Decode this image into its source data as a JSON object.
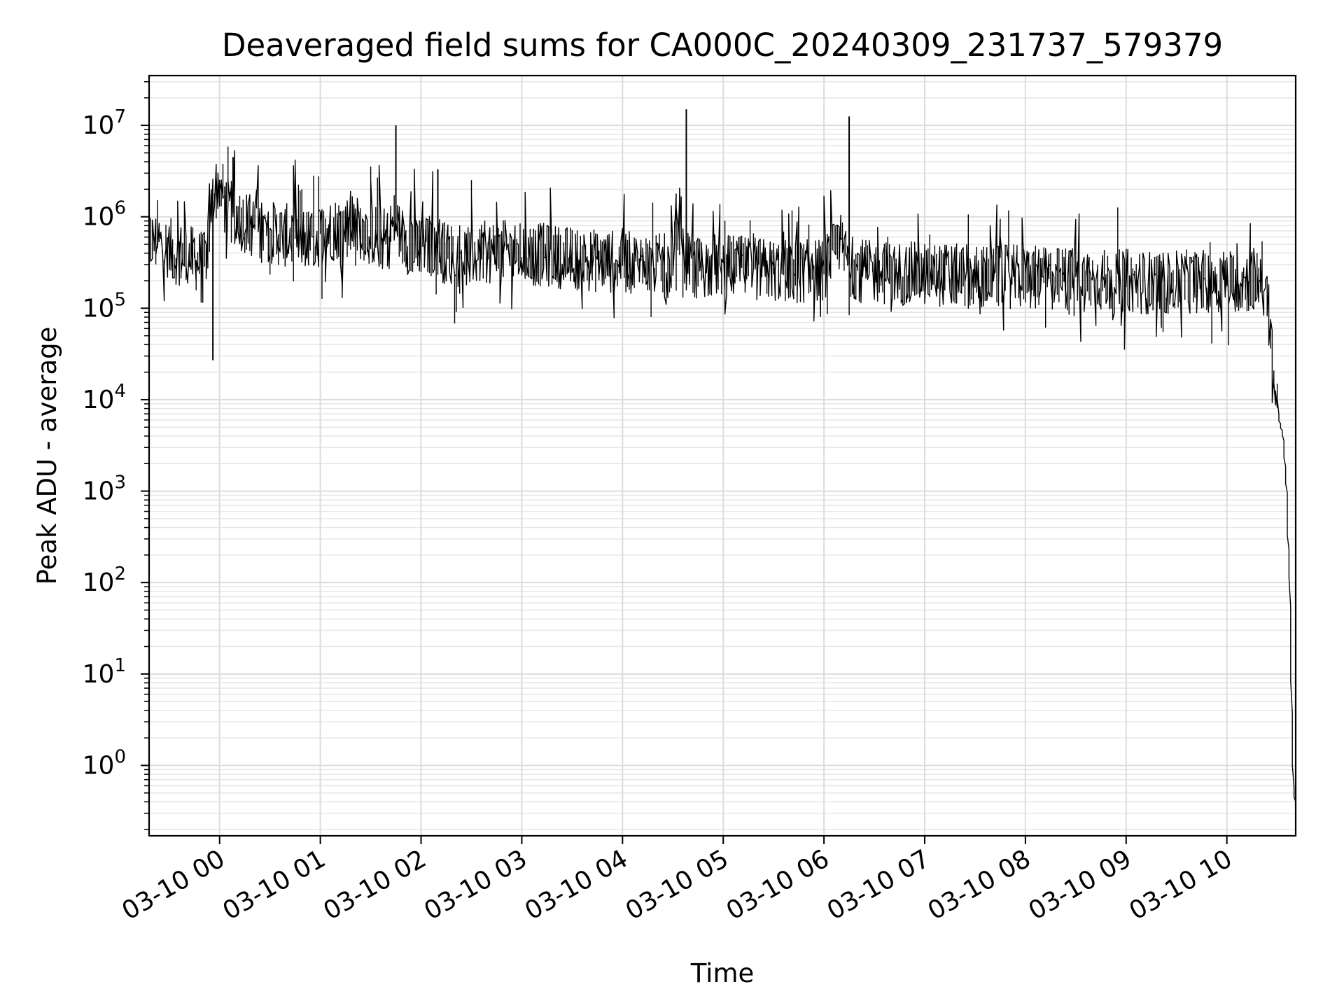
{
  "chart_data": {
    "type": "line",
    "title": "Deaveraged field sums for CA000C_20240309_231737_579379",
    "xlabel": "Time",
    "ylabel": "Peak ADU - average",
    "yscale": "log",
    "ylim": [
      0.17,
      35000000
    ],
    "xlim": [
      "2024-03-09 23:18",
      "2024-03-10 10:41"
    ],
    "grid": true,
    "line_color": "#000000",
    "x_ticks": [
      {
        "value": "2024-03-10 00:00",
        "label": "03-10 00"
      },
      {
        "value": "2024-03-10 01:00",
        "label": "03-10 01"
      },
      {
        "value": "2024-03-10 02:00",
        "label": "03-10 02"
      },
      {
        "value": "2024-03-10 03:00",
        "label": "03-10 03"
      },
      {
        "value": "2024-03-10 04:00",
        "label": "03-10 04"
      },
      {
        "value": "2024-03-10 05:00",
        "label": "03-10 05"
      },
      {
        "value": "2024-03-10 06:00",
        "label": "03-10 06"
      },
      {
        "value": "2024-03-10 07:00",
        "label": "03-10 07"
      },
      {
        "value": "2024-03-10 08:00",
        "label": "03-10 08"
      },
      {
        "value": "2024-03-10 09:00",
        "label": "03-10 09"
      },
      {
        "value": "2024-03-10 10:00",
        "label": "03-10 10"
      }
    ],
    "y_ticks": [
      {
        "value": 1,
        "base": "10",
        "exp": "0"
      },
      {
        "value": 10,
        "base": "10",
        "exp": "1"
      },
      {
        "value": 100,
        "base": "10",
        "exp": "2"
      },
      {
        "value": 1000,
        "base": "10",
        "exp": "3"
      },
      {
        "value": 10000,
        "base": "10",
        "exp": "4"
      },
      {
        "value": 100000,
        "base": "10",
        "exp": "5"
      },
      {
        "value": 1000000,
        "base": "10",
        "exp": "6"
      },
      {
        "value": 10000000,
        "base": "10",
        "exp": "7"
      }
    ],
    "series": [
      {
        "x": [
          "2024-03-09 23:18",
          "2024-03-09 23:25",
          "2024-03-09 23:35",
          "2024-03-09 23:45",
          "2024-03-09 23:52",
          "2024-03-09 23:56",
          "2024-03-10 00:00",
          "2024-03-10 00:05",
          "2024-03-10 00:15",
          "2024-03-10 00:25",
          "2024-03-10 00:35",
          "2024-03-10 00:45",
          "2024-03-10 00:55",
          "2024-03-10 01:05",
          "2024-03-10 01:15",
          "2024-03-10 01:25",
          "2024-03-10 01:35",
          "2024-03-10 01:40",
          "2024-03-10 01:45",
          "2024-03-10 01:50",
          "2024-03-10 01:55",
          "2024-03-10 02:05",
          "2024-03-10 02:10",
          "2024-03-10 02:15",
          "2024-03-10 02:30",
          "2024-03-10 02:45",
          "2024-03-10 03:00",
          "2024-03-10 03:15",
          "2024-03-10 03:30",
          "2024-03-10 03:45",
          "2024-03-10 04:00",
          "2024-03-10 04:15",
          "2024-03-10 04:30",
          "2024-03-10 04:35",
          "2024-03-10 04:38",
          "2024-03-10 04:45",
          "2024-03-10 05:00",
          "2024-03-10 05:15",
          "2024-03-10 05:30",
          "2024-03-10 05:45",
          "2024-03-10 06:00",
          "2024-03-10 06:10",
          "2024-03-10 06:15",
          "2024-03-10 06:25",
          "2024-03-10 06:45",
          "2024-03-10 07:00",
          "2024-03-10 07:15",
          "2024-03-10 07:30",
          "2024-03-10 07:45",
          "2024-03-10 08:00",
          "2024-03-10 08:15",
          "2024-03-10 08:30",
          "2024-03-10 08:45",
          "2024-03-10 09:00",
          "2024-03-10 09:15",
          "2024-03-10 09:30",
          "2024-03-10 09:45",
          "2024-03-10 10:00",
          "2024-03-10 10:15",
          "2024-03-10 10:20",
          "2024-03-10 10:24",
          "2024-03-10 10:28",
          "2024-03-10 10:31",
          "2024-03-10 10:34",
          "2024-03-10 10:36",
          "2024-03-10 10:38",
          "2024-03-10 10:39",
          "2024-03-10 10:40",
          "2024-03-10 10:41"
        ],
        "y": [
          550000,
          500000,
          400000,
          350000,
          300000,
          1500000,
          2500000,
          1200000,
          900000,
          700000,
          650000,
          600000,
          550000,
          700000,
          800000,
          750000,
          600000,
          550000,
          900000,
          550000,
          500000,
          480000,
          500000,
          400000,
          380000,
          420000,
          400000,
          380000,
          350000,
          330000,
          320000,
          300000,
          290000,
          1000000,
          300000,
          280000,
          300000,
          270000,
          260000,
          250000,
          260000,
          500000,
          300000,
          250000,
          240000,
          240000,
          230000,
          220000,
          220000,
          220000,
          210000,
          210000,
          200000,
          200000,
          190000,
          190000,
          200000,
          200000,
          200000,
          230000,
          120000,
          20000,
          7000,
          4000,
          1000,
          100,
          5,
          0.6,
          0.4
        ]
      }
    ],
    "spikes": [
      {
        "x": "2024-03-10 01:45",
        "y": 10000000
      },
      {
        "x": "2024-03-10 02:10",
        "y": 3300000
      },
      {
        "x": "2024-03-10 04:38",
        "y": 15000000
      },
      {
        "x": "2024-03-10 06:15",
        "y": 12500000
      },
      {
        "x": "2024-03-09 23:56",
        "y": 27000
      },
      {
        "x": "2024-03-10 00:08",
        "y": 4500000
      }
    ]
  }
}
